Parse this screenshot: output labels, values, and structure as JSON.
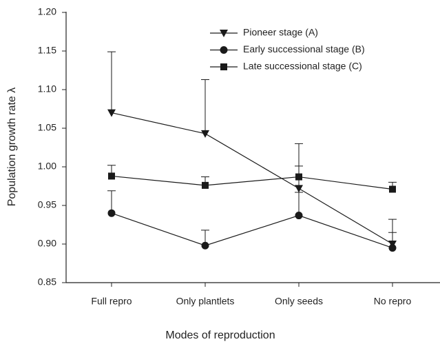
{
  "chart_data": {
    "type": "line",
    "x_label": "Modes of reproduction",
    "y_label": "Population growth rate λ",
    "categories": [
      "Full repro",
      "Only plantlets",
      "Only seeds",
      "No repro"
    ],
    "series": [
      {
        "name": "Pioneer stage (A)",
        "color": "#1a1a1a",
        "marker": "triangle-down",
        "values": [
          1.07,
          1.043,
          0.972,
          0.9
        ],
        "errors": [
          0.079,
          0.07,
          0.058,
          0.032
        ]
      },
      {
        "name": "Early successional stage (B)",
        "color": "#1a1a1a",
        "marker": "circle",
        "values": [
          0.94,
          0.898,
          0.937,
          0.895
        ],
        "errors": [
          0.029,
          0.02,
          0.03,
          0.02
        ]
      },
      {
        "name": "Late successional stage (C)",
        "color": "#1a1a1a",
        "marker": "square",
        "values": [
          0.988,
          0.976,
          0.987,
          0.971
        ],
        "errors": [
          0.014,
          0.011,
          0.014,
          0.009
        ]
      }
    ],
    "ylim": [
      0.85,
      1.2
    ],
    "yticks": [
      0.85,
      {
        "value": 0.9,
        "label": "0.90"
      },
      0.95,
      {
        "value": 1.0,
        "label": "1.00"
      },
      1.05,
      {
        "value": 1.1,
        "label": "1.10"
      },
      1.15,
      {
        "value": 1.2,
        "label": "1.20"
      }
    ],
    "legend": "top-right"
  }
}
